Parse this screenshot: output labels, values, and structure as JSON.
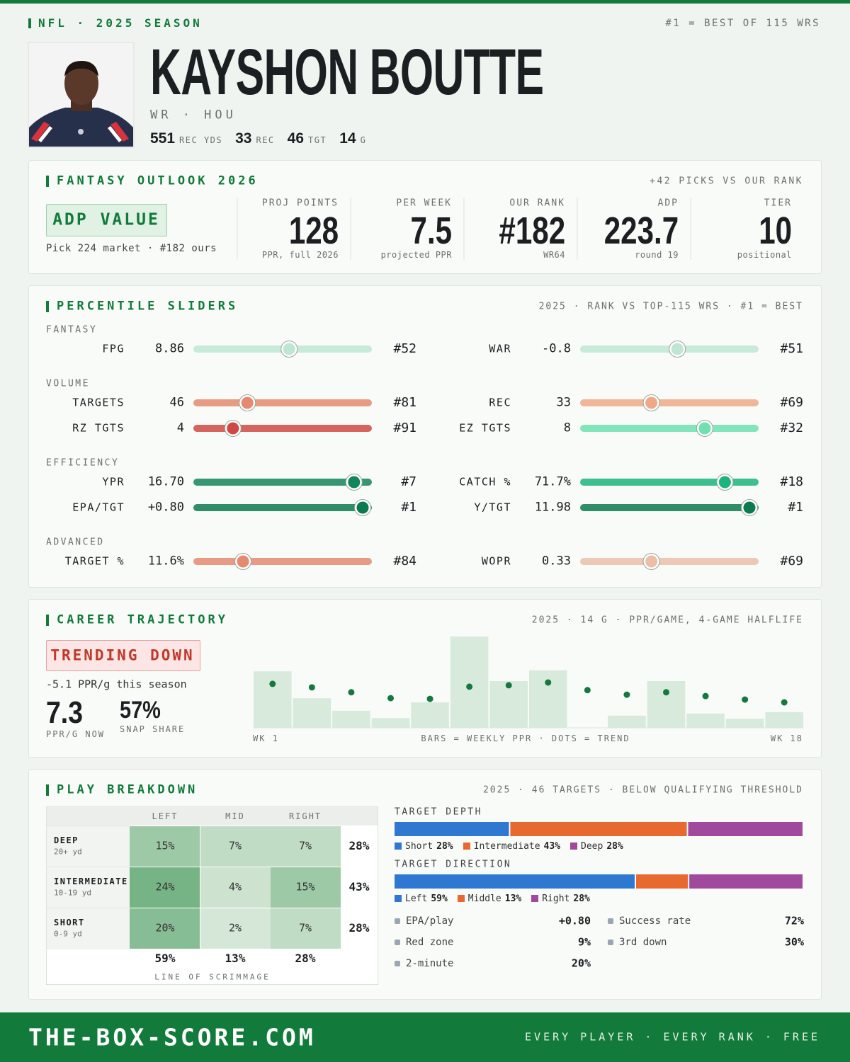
{
  "header": {
    "league": "NFL · 2025 SEASON",
    "note": "#1 = BEST OF 115 WRS",
    "name": "KAYSHON BOUTTE",
    "position": "WR · HOU",
    "stats": [
      {
        "value": 551,
        "label": "REC YDS"
      },
      {
        "value": 33,
        "label": "REC"
      },
      {
        "value": 46,
        "label": "TGT"
      },
      {
        "value": 14,
        "label": "G"
      }
    ]
  },
  "outlook": {
    "title": "FANTASY OUTLOOK 2026",
    "note": "+42 PICKS VS OUR RANK",
    "badge": "ADP VALUE",
    "badge_note": "Pick 224 market · #182 ours",
    "metrics": [
      {
        "label": "PROJ POINTS",
        "value": "128",
        "sub": "PPR, full 2026"
      },
      {
        "label": "PER WEEK",
        "value": "7.5",
        "sub": "projected PPR"
      },
      {
        "label": "OUR RANK",
        "value": "#182",
        "sub": "WR64"
      },
      {
        "label": "ADP",
        "value": "223.7",
        "sub": "round 19"
      },
      {
        "label": "TIER",
        "value": "10",
        "sub": "positional"
      }
    ]
  },
  "sliders": {
    "title": "PERCENTILE SLIDERS",
    "note": "2025 · RANK VS TOP-115 WRS · #1 = BEST",
    "xlim": [
      115,
      1
    ],
    "groups": [
      {
        "name": "FANTASY",
        "items": [
          {
            "name": "FPG",
            "value": "8.86",
            "rank": {
              "value": 52,
              "label": "#52"
            },
            "color": "#bfe6d2"
          },
          {
            "name": "WAR",
            "value": "-0.8",
            "rank": {
              "value": 51,
              "label": "#51"
            },
            "color": "#bfe6d2"
          }
        ]
      },
      {
        "name": "VOLUME",
        "items": [
          {
            "name": "TARGETS",
            "value": "46",
            "rank": {
              "value": 81,
              "label": "#81"
            },
            "color": "#e48a70"
          },
          {
            "name": "REC",
            "value": "33",
            "rank": {
              "value": 69,
              "label": "#69"
            },
            "color": "#eea989"
          },
          {
            "name": "RZ TGTS",
            "value": "4",
            "rank": {
              "value": 91,
              "label": "#91"
            },
            "color": "#cf4944"
          },
          {
            "name": "EZ TGTS",
            "value": "8",
            "rank": {
              "value": 32,
              "label": "#32"
            },
            "color": "#6fe0b0"
          }
        ]
      },
      {
        "name": "EFFICIENCY",
        "items": [
          {
            "name": "YPR",
            "value": "16.70",
            "rank": {
              "value": 7,
              "label": "#7"
            },
            "color": "#14855a"
          },
          {
            "name": "CATCH %",
            "value": "71.7%",
            "rank": {
              "value": 18,
              "label": "#18"
            },
            "color": "#1db47e"
          },
          {
            "name": "EPA/TGT",
            "value": "+0.80",
            "rank": {
              "value": 1,
              "label": "#1"
            },
            "color": "#0c7a4f"
          },
          {
            "name": "Y/TGT",
            "value": "11.98",
            "rank": {
              "value": 1,
              "label": "#1"
            },
            "color": "#0c7a4f"
          }
        ]
      },
      {
        "name": "ADVANCED",
        "items": [
          {
            "name": "TARGET %",
            "value": "11.6%",
            "rank": {
              "value": 84,
              "label": "#84"
            },
            "color": "#e48a70"
          },
          {
            "name": "WOPR",
            "value": "0.33",
            "rank": {
              "value": 69,
              "label": "#69"
            },
            "color": "#ebbea8"
          }
        ]
      }
    ]
  },
  "trajectory": {
    "title": "CAREER TRAJECTORY",
    "note": "2025 · 14 G · PPR/GAME, 4-GAME HALFLIFE",
    "badge": "TRENDING DOWN",
    "delta_note": "-5.1 PPR/g this season",
    "now": {
      "value": "7.3",
      "label": "PPR/G NOW"
    },
    "snap": {
      "value": "57%",
      "label": "SNAP SHARE"
    },
    "ylim": [
      0,
      27
    ],
    "ppr": [
      16.2,
      8.5,
      4.9,
      2.8,
      7.3,
      26.2,
      13.4,
      16.5,
      0,
      3.5,
      13.4,
      4.1,
      2.6,
      4.5
    ],
    "trend": [
      12.6,
      11.6,
      10.2,
      8.5,
      8.3,
      11.8,
      12.2,
      13.0,
      10.8,
      9.5,
      10.2,
      9.1,
      8.1,
      7.3
    ],
    "x_start": "WK 1",
    "x_note": "BARS = WEEKLY PPR · DOTS = TREND",
    "x_end": "WK 18"
  },
  "breakdown": {
    "title": "PLAY BREAKDOWN",
    "note": "2025 · 46 TARGETS · BELOW QUALIFYING THRESHOLD",
    "columns": [
      "LEFT",
      "MID",
      "RIGHT"
    ],
    "rows": [
      {
        "name": "DEEP",
        "sub": "20+ yd",
        "cells": [
          "15%",
          "7%",
          "7%"
        ],
        "total": "28%"
      },
      {
        "name": "INTERMEDIATE",
        "sub": "10-19 yd",
        "cells": [
          "24%",
          "4%",
          "15%"
        ],
        "total": "43%"
      },
      {
        "name": "SHORT",
        "sub": "0-9 yd",
        "cells": [
          "20%",
          "2%",
          "7%"
        ],
        "total": "28%"
      }
    ],
    "totals": [
      "59%",
      "13%",
      "28%"
    ],
    "footer": "LINE OF SCRIMMAGE",
    "depth": {
      "title": "TARGET DEPTH",
      "segments": [
        {
          "name": "Short",
          "value": 28,
          "label": "28%",
          "color": "#2e78d2"
        },
        {
          "name": "Intermediate",
          "value": 43,
          "label": "43%",
          "color": "#e8692f"
        },
        {
          "name": "Deep",
          "value": 28,
          "label": "28%",
          "color": "#a0499d"
        }
      ]
    },
    "direction": {
      "title": "TARGET DIRECTION",
      "segments": [
        {
          "name": "Left",
          "value": 59,
          "label": "59%",
          "color": "#2e78d2"
        },
        {
          "name": "Middle",
          "value": 13,
          "label": "13%",
          "color": "#e8692f"
        },
        {
          "name": "Right",
          "value": 28,
          "label": "28%",
          "color": "#a0499d"
        }
      ]
    },
    "stats": [
      {
        "name": "EPA/play",
        "value": "+0.80"
      },
      {
        "name": "Success rate",
        "value": "72%"
      },
      {
        "name": "Red zone",
        "value": "9%"
      },
      {
        "name": "3rd down",
        "value": "30%"
      },
      {
        "name": "2-minute",
        "value": "20%"
      }
    ]
  },
  "footer": {
    "site": "THE-BOX-SCORE.COM",
    "tagline": "EVERY PLAYER · EVERY RANK · FREE"
  }
}
